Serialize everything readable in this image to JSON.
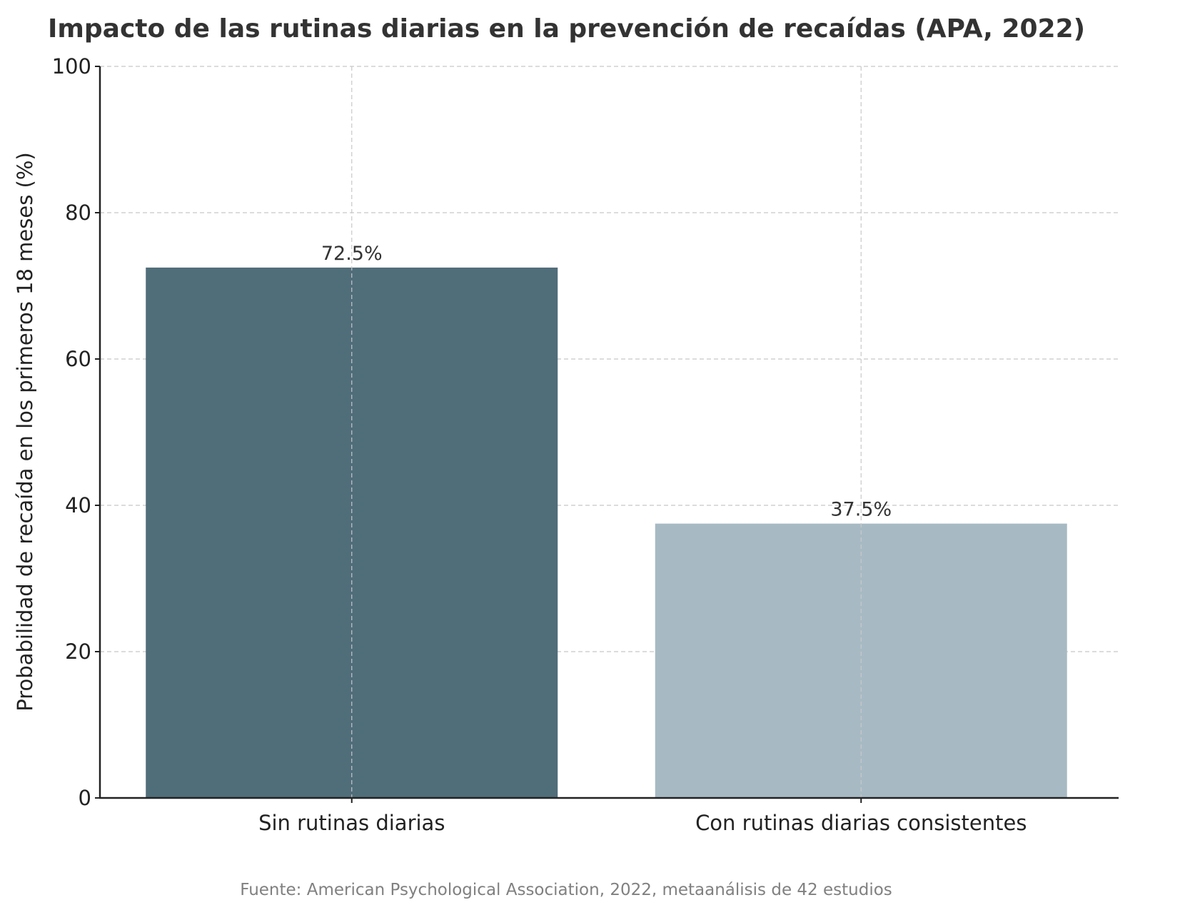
{
  "chart_data": {
    "type": "bar",
    "title": "Impacto de las rutinas diarias en la prevención de recaídas (APA, 2022)",
    "xlabel": "",
    "ylabel": "Probabilidad de recaída en los primeros 18 meses (%)",
    "categories": [
      "Sin rutinas diarias",
      "Con rutinas diarias consistentes"
    ],
    "values": [
      72.5,
      37.5
    ],
    "data_labels": [
      "72.5%",
      "37.5%"
    ],
    "colors": [
      "#506d7a",
      "#a7bac4"
    ],
    "ylim": [
      0,
      100
    ],
    "yticks": [
      0,
      20,
      40,
      60,
      80,
      100
    ],
    "grid": true,
    "footnote": "Fuente: American Psychological Association, 2022, metaanálisis de 42 estudios"
  }
}
